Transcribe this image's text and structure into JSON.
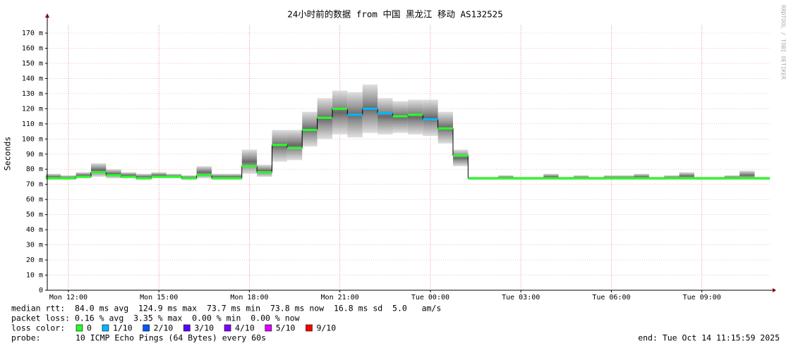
{
  "chart_data": {
    "type": "smokeping",
    "title": "24小时前的数据 from 中国 黑龙江 移动 AS132525",
    "y_label": "Seconds",
    "watermark": "RRDTOOL / TOBI OETIKER",
    "xlim": [
      11.3,
      35.3
    ],
    "xticks": [
      {
        "value": 12,
        "label": "Mon 12:00"
      },
      {
        "value": 15,
        "label": "Mon 15:00"
      },
      {
        "value": 18,
        "label": "Mon 18:00"
      },
      {
        "value": 21,
        "label": "Mon 21:00"
      },
      {
        "value": 24,
        "label": "Tue 00:00"
      },
      {
        "value": 27,
        "label": "Tue 03:00"
      },
      {
        "value": 30,
        "label": "Tue 06:00"
      },
      {
        "value": 33,
        "label": "Tue 09:00"
      }
    ],
    "ylim": [
      0,
      175
    ],
    "yticks": [
      0,
      {
        "value": 10,
        "label": "10 m"
      },
      {
        "value": 20,
        "label": "20 m"
      },
      {
        "value": 30,
        "label": "30 m"
      },
      {
        "value": 40,
        "label": "40 m"
      },
      {
        "value": 50,
        "label": "50 m"
      },
      {
        "value": 60,
        "label": "60 m"
      },
      {
        "value": 70,
        "label": "70 m"
      },
      {
        "value": 80,
        "label": "80 m"
      },
      {
        "value": 90,
        "label": "90 m"
      },
      {
        "value": 100,
        "label": "100 m"
      },
      {
        "value": 110,
        "label": "110 m"
      },
      {
        "value": 120,
        "label": "120 m"
      },
      {
        "value": 130,
        "label": "130 m"
      },
      {
        "value": 140,
        "label": "140 m"
      },
      {
        "value": 150,
        "label": "150 m"
      },
      {
        "value": 160,
        "label": "160 m"
      },
      {
        "value": 170,
        "label": "170 m"
      }
    ],
    "grid": true,
    "x": [
      11.5,
      12,
      12.5,
      13,
      13.5,
      14,
      14.5,
      15,
      15.5,
      16,
      16.5,
      17,
      17.5,
      18,
      18.5,
      19,
      19.5,
      20,
      20.5,
      21,
      21.5,
      22,
      22.5,
      23,
      23.5,
      24,
      24.5,
      25,
      25.5,
      26,
      26.5,
      27,
      27.5,
      28,
      28.5,
      29,
      29.5,
      30,
      30.5,
      31,
      31.5,
      32,
      32.5,
      33,
      33.5,
      34,
      34.5,
      35
    ],
    "median": [
      74,
      74,
      75,
      78,
      76,
      75,
      74,
      75,
      75,
      74,
      76,
      74,
      74,
      82,
      78,
      96,
      94,
      106,
      114,
      120,
      116,
      120,
      117,
      115,
      116,
      113,
      107,
      89,
      74,
      74,
      74,
      74,
      74,
      74,
      74,
      74,
      74,
      74,
      74,
      74,
      74,
      74,
      74,
      74,
      74,
      74,
      74,
      74
    ],
    "smoke_low": [
      73,
      73,
      74,
      75,
      74,
      74,
      73,
      74,
      74,
      73,
      74,
      73,
      73,
      77,
      75,
      85,
      86,
      95,
      100,
      103,
      101,
      104,
      103,
      104,
      103,
      102,
      97,
      82,
      73,
      73,
      73,
      73,
      73,
      73,
      73,
      73,
      73,
      73,
      73,
      73,
      73,
      73,
      73,
      73,
      73,
      73,
      73,
      73
    ],
    "smoke_high": [
      77,
      76,
      78,
      84,
      80,
      78,
      77,
      78,
      77,
      76,
      82,
      77,
      77,
      93,
      83,
      106,
      106,
      118,
      127,
      132,
      131,
      136,
      127,
      125,
      126,
      126,
      118,
      93,
      75,
      75,
      76,
      75,
      75,
      77,
      75,
      76,
      75,
      76,
      76,
      77,
      75,
      76,
      78,
      75,
      75,
      76,
      79,
      75
    ],
    "loss": [
      0,
      0,
      0,
      0,
      0,
      0,
      0,
      0,
      0,
      0,
      0,
      0,
      0,
      0,
      0,
      0,
      0,
      0,
      0,
      0,
      1,
      1,
      1,
      0,
      0,
      1,
      0,
      0,
      0,
      0,
      0,
      0,
      0,
      0,
      0,
      0,
      0,
      0,
      0,
      0,
      0,
      0,
      0,
      0,
      0,
      0,
      0,
      0
    ],
    "stats": [
      "median rtt:  84.0 ms avg  124.9 ms max  73.7 ms min  73.8 ms now  16.8 ms sd  5.0   am/s",
      "packet loss: 0.16 % avg  3.35 % max  0.00 % min  0.00 % now"
    ],
    "loss_color_label": "loss color:",
    "loss_legend": [
      {
        "lost": 0,
        "label": "0",
        "color": "#26ff26"
      },
      {
        "lost": 1,
        "label": "1/10",
        "color": "#00b8ff"
      },
      {
        "lost": 2,
        "label": "2/10",
        "color": "#0059ff"
      },
      {
        "lost": 3,
        "label": "3/10",
        "color": "#5e00ff"
      },
      {
        "lost": 4,
        "label": "4/10",
        "color": "#7e00ff"
      },
      {
        "lost": 5,
        "label": "5/10",
        "color": "#dd00ff"
      },
      {
        "lost": 9,
        "label": "9/10",
        "color": "#ff0000"
      }
    ],
    "probe_label": "probe:",
    "probe": "10 ICMP Echo Pings (64 Bytes) every 60s",
    "end": "end: Tue Oct 14 11:15:59 2025"
  }
}
